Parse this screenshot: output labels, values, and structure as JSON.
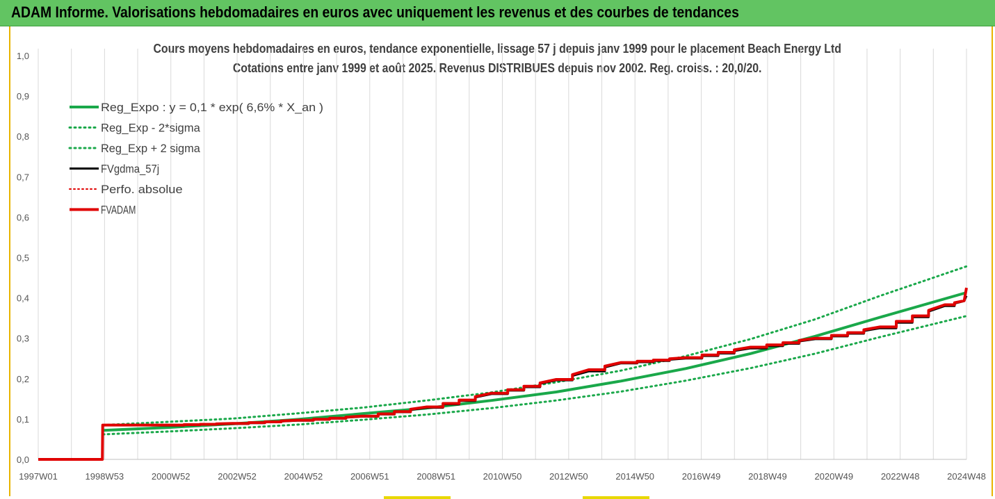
{
  "banner": {
    "title": "ADAM Informe. Valorisations hebdomadaires en euros avec uniquement les revenus et des courbes de tendances"
  },
  "colors": {
    "banner_bg": "#62c462",
    "reg_expo": "#1aa84a",
    "band": "#1aa84a",
    "fvgdma": "#000000",
    "perfo": "#e00000",
    "fvadam": "#e00000",
    "grid": "#d9d9d9"
  },
  "chart_data": {
    "type": "line",
    "title": "Cours moyens hebdomadaires en euros, tendance exponentielle, lissage 57 j depuis janv 1999 pour le placement Beach Energy Ltd",
    "subtitle": "Cotations entre janv 1999 et août 2025.  Revenus DISTRIBUES depuis nov 2002. Reg. croiss. : 20,0/20.",
    "ylim": [
      0,
      1.0
    ],
    "y_ticks": [
      "0,0",
      "0,1",
      "0,2",
      "0,3",
      "0,4",
      "0,5",
      "0,6",
      "0,7",
      "0,8",
      "0,9",
      "1,0"
    ],
    "x_ticks": [
      "1997W01",
      "1998W53",
      "2000W52",
      "2002W52",
      "2004W52",
      "2006W51",
      "2008W51",
      "2010W50",
      "2012W50",
      "2014W50",
      "2016W49",
      "2018W49",
      "2020W49",
      "2022W48",
      "2024W48"
    ],
    "xlim": [
      1997.0,
      2025.67
    ],
    "grid": "vertical",
    "legend_position": "top-left",
    "legend": [
      "Reg_Expo : y = 0,1 * exp( 6,6% *  X_an )",
      "Reg_Exp - 2*sigma",
      "Reg_Exp + 2 sigma",
      "FVgdma_57j",
      "Perfo. absolue",
      "FVADAM"
    ],
    "series": [
      {
        "name": "Reg_Expo : y = 0,1 * exp( 6,6% *  X_an )",
        "x": [
          1999.0,
          2001.0,
          2003.0,
          2005.0,
          2007.0,
          2009.0,
          2011.0,
          2013.0,
          2015.0,
          2017.0,
          2019.0,
          2021.0,
          2023.0,
          2025.67
        ],
        "values": [
          0.072,
          0.079,
          0.088,
          0.099,
          0.113,
          0.127,
          0.146,
          0.167,
          0.194,
          0.225,
          0.262,
          0.305,
          0.352,
          0.413
        ]
      },
      {
        "name": "Reg_Exp - 2*sigma",
        "x": [
          1999.0,
          2001.0,
          2003.0,
          2005.0,
          2007.0,
          2009.0,
          2011.0,
          2013.0,
          2015.0,
          2017.0,
          2019.0,
          2021.0,
          2023.0,
          2025.67
        ],
        "values": [
          0.062,
          0.069,
          0.077,
          0.086,
          0.098,
          0.111,
          0.127,
          0.146,
          0.168,
          0.195,
          0.226,
          0.262,
          0.303,
          0.355
        ]
      },
      {
        "name": "Reg_Exp + 2 sigma",
        "x": [
          1999.0,
          2001.0,
          2003.0,
          2005.0,
          2007.0,
          2009.0,
          2011.0,
          2013.0,
          2015.0,
          2017.0,
          2019.0,
          2021.0,
          2023.0,
          2025.67
        ],
        "values": [
          0.085,
          0.093,
          0.101,
          0.114,
          0.128,
          0.146,
          0.166,
          0.191,
          0.22,
          0.256,
          0.298,
          0.347,
          0.405,
          0.478
        ]
      },
      {
        "name": "FVgdma_57j",
        "x": [
          1997.0,
          1998.98,
          1998.99,
          2001.0,
          2003.0,
          2005.0,
          2007.0,
          2009.0,
          2011.0,
          2013.0,
          2014.0,
          2015.0,
          2017.0,
          2019.0,
          2021.0,
          2023.0,
          2025.0,
          2025.6,
          2025.67
        ],
        "values": [
          0.0,
          0.0,
          0.085,
          0.084,
          0.088,
          0.096,
          0.106,
          0.128,
          0.162,
          0.196,
          0.218,
          0.238,
          0.25,
          0.275,
          0.298,
          0.325,
          0.38,
          0.392,
          0.405
        ]
      },
      {
        "name": "FVADAM",
        "x": [
          1997.0,
          1998.98,
          1998.99,
          2001.0,
          2003.0,
          2005.0,
          2007.0,
          2009.0,
          2011.0,
          2013.0,
          2014.0,
          2015.0,
          2017.0,
          2019.0,
          2021.0,
          2023.0,
          2025.0,
          2025.6,
          2025.67
        ],
        "values": [
          0.0,
          0.0,
          0.085,
          0.085,
          0.089,
          0.097,
          0.107,
          0.13,
          0.164,
          0.198,
          0.222,
          0.24,
          0.252,
          0.278,
          0.3,
          0.328,
          0.383,
          0.393,
          0.425
        ]
      }
    ]
  }
}
